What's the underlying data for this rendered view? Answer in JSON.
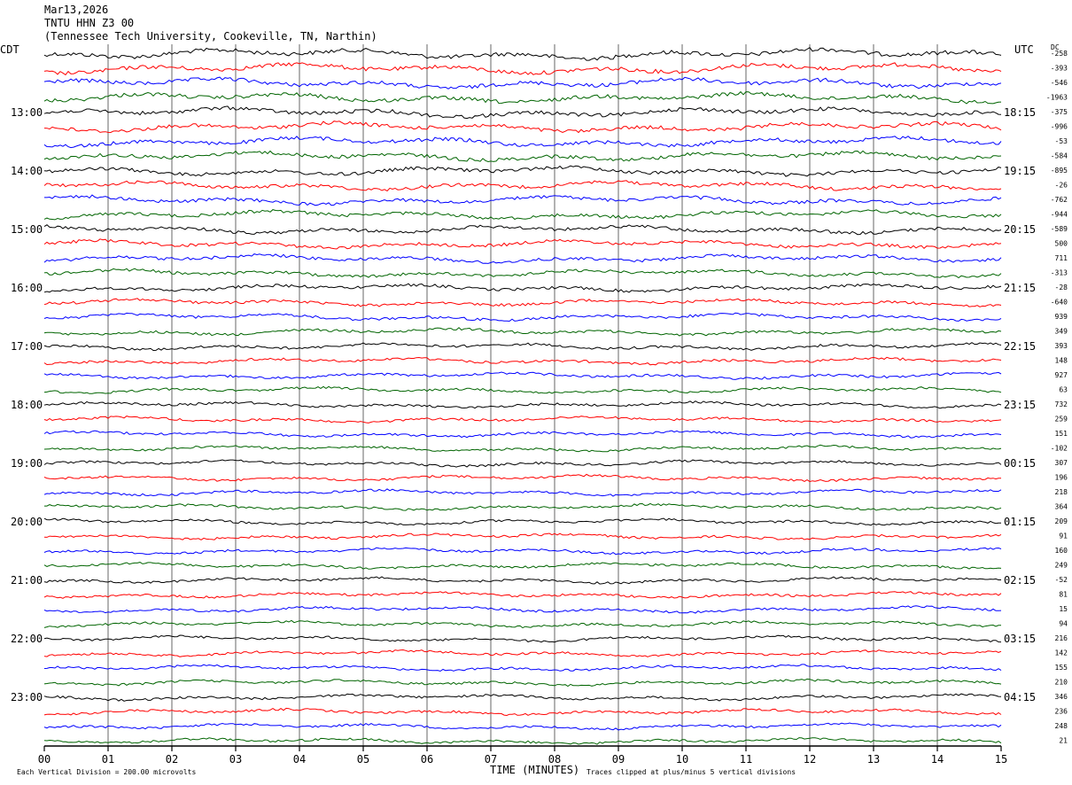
{
  "header": {
    "date": "Mar13,2026",
    "station": "TNTU HHN Z3 00",
    "location": "(Tennessee Tech University, Cookeville, TN, Narthin)"
  },
  "labels": {
    "left_tz": "CDT",
    "right_tz": "UTC",
    "dc_header": "DC",
    "x_axis_title": "TIME (MINUTES)",
    "scale_note": "Each Vertical Division =  200.00 microvolts",
    "clip_note": "Traces clipped at plus/minus 5 vertical divisions"
  },
  "colors": {
    "trace_cycle": [
      "#000000",
      "#ff0000",
      "#0000ff",
      "#006400"
    ],
    "grid": "#000000"
  },
  "chart_data": {
    "type": "line",
    "title": "TNTU HHN Z3 00",
    "xlabel": "TIME (MINUTES)",
    "xlim": [
      0,
      15
    ],
    "x_ticks": [
      "00",
      "01",
      "02",
      "03",
      "04",
      "05",
      "06",
      "07",
      "08",
      "09",
      "10",
      "11",
      "12",
      "13",
      "14",
      "15"
    ],
    "row_minutes": 15,
    "row_count": 48,
    "left_hour_labels": [
      "13:00",
      "14:00",
      "15:00",
      "16:00",
      "17:00",
      "18:00",
      "19:00",
      "20:00",
      "21:00",
      "22:00",
      "23:00"
    ],
    "right_utc_labels": [
      "18:15",
      "19:15",
      "20:15",
      "21:15",
      "22:15",
      "23:15",
      "00:15",
      "01:15",
      "02:15",
      "03:15",
      "04:15"
    ],
    "dc_offsets": [
      -258,
      -393,
      -546,
      -1963,
      -375,
      -996,
      -53,
      -584,
      -895,
      -26,
      -762,
      -944,
      -589,
      500,
      711,
      -313,
      -28,
      -640,
      939,
      349,
      393,
      148,
      927,
      63,
      732,
      259,
      151,
      -102,
      307,
      196,
      218,
      364,
      209,
      91,
      160,
      249,
      -52,
      81,
      15,
      94,
      216,
      142,
      155,
      210,
      346,
      236,
      248,
      21
    ],
    "vertical_division_microvolts": 200.0,
    "clip_divisions": 5
  }
}
